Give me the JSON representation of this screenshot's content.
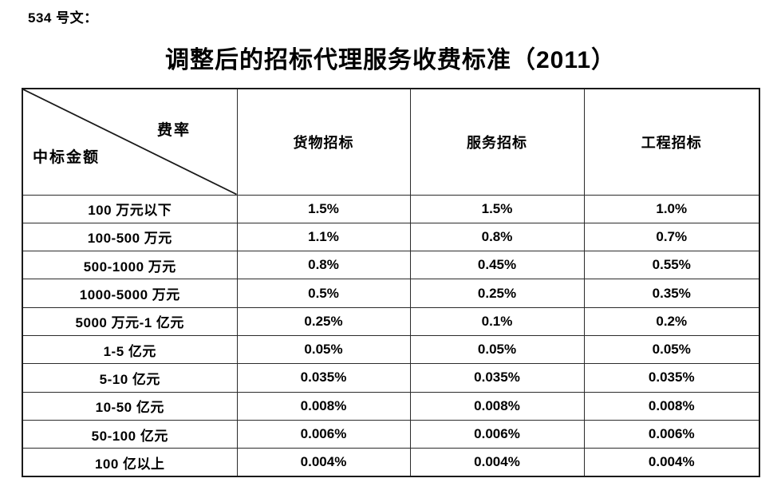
{
  "doc": {
    "doc_number": "534 号文：",
    "title": "调整后的招标代理服务收费标准（2011）"
  },
  "table": {
    "corner": {
      "top_right_label": "费率",
      "bottom_left_label": "中标金额"
    },
    "columns": [
      "货物招标",
      "服务招标",
      "工程招标"
    ],
    "rows": [
      {
        "label": "100 万元以下",
        "values": [
          "1.5%",
          "1.5%",
          "1.0%"
        ]
      },
      {
        "label": "100-500 万元",
        "values": [
          "1.1%",
          "0.8%",
          "0.7%"
        ]
      },
      {
        "label": "500-1000 万元",
        "values": [
          "0.8%",
          "0.45%",
          "0.55%"
        ]
      },
      {
        "label": "1000-5000 万元",
        "values": [
          "0.5%",
          "0.25%",
          "0.35%"
        ]
      },
      {
        "label": "5000 万元-1 亿元",
        "values": [
          "0.25%",
          "0.1%",
          "0.2%"
        ]
      },
      {
        "label": "1-5 亿元",
        "values": [
          "0.05%",
          "0.05%",
          "0.05%"
        ]
      },
      {
        "label": "5-10 亿元",
        "values": [
          "0.035%",
          "0.035%",
          "0.035%"
        ]
      },
      {
        "label": "10-50 亿元",
        "values": [
          "0.008%",
          "0.008%",
          "0.008%"
        ]
      },
      {
        "label": "50-100 亿元",
        "values": [
          "0.006%",
          "0.006%",
          "0.006%"
        ]
      },
      {
        "label": "100 亿以上",
        "values": [
          "0.004%",
          "0.004%",
          "0.004%"
        ]
      }
    ]
  },
  "colors": {
    "text": "#000000",
    "border": "#1a1a1a",
    "background": "#ffffff"
  }
}
